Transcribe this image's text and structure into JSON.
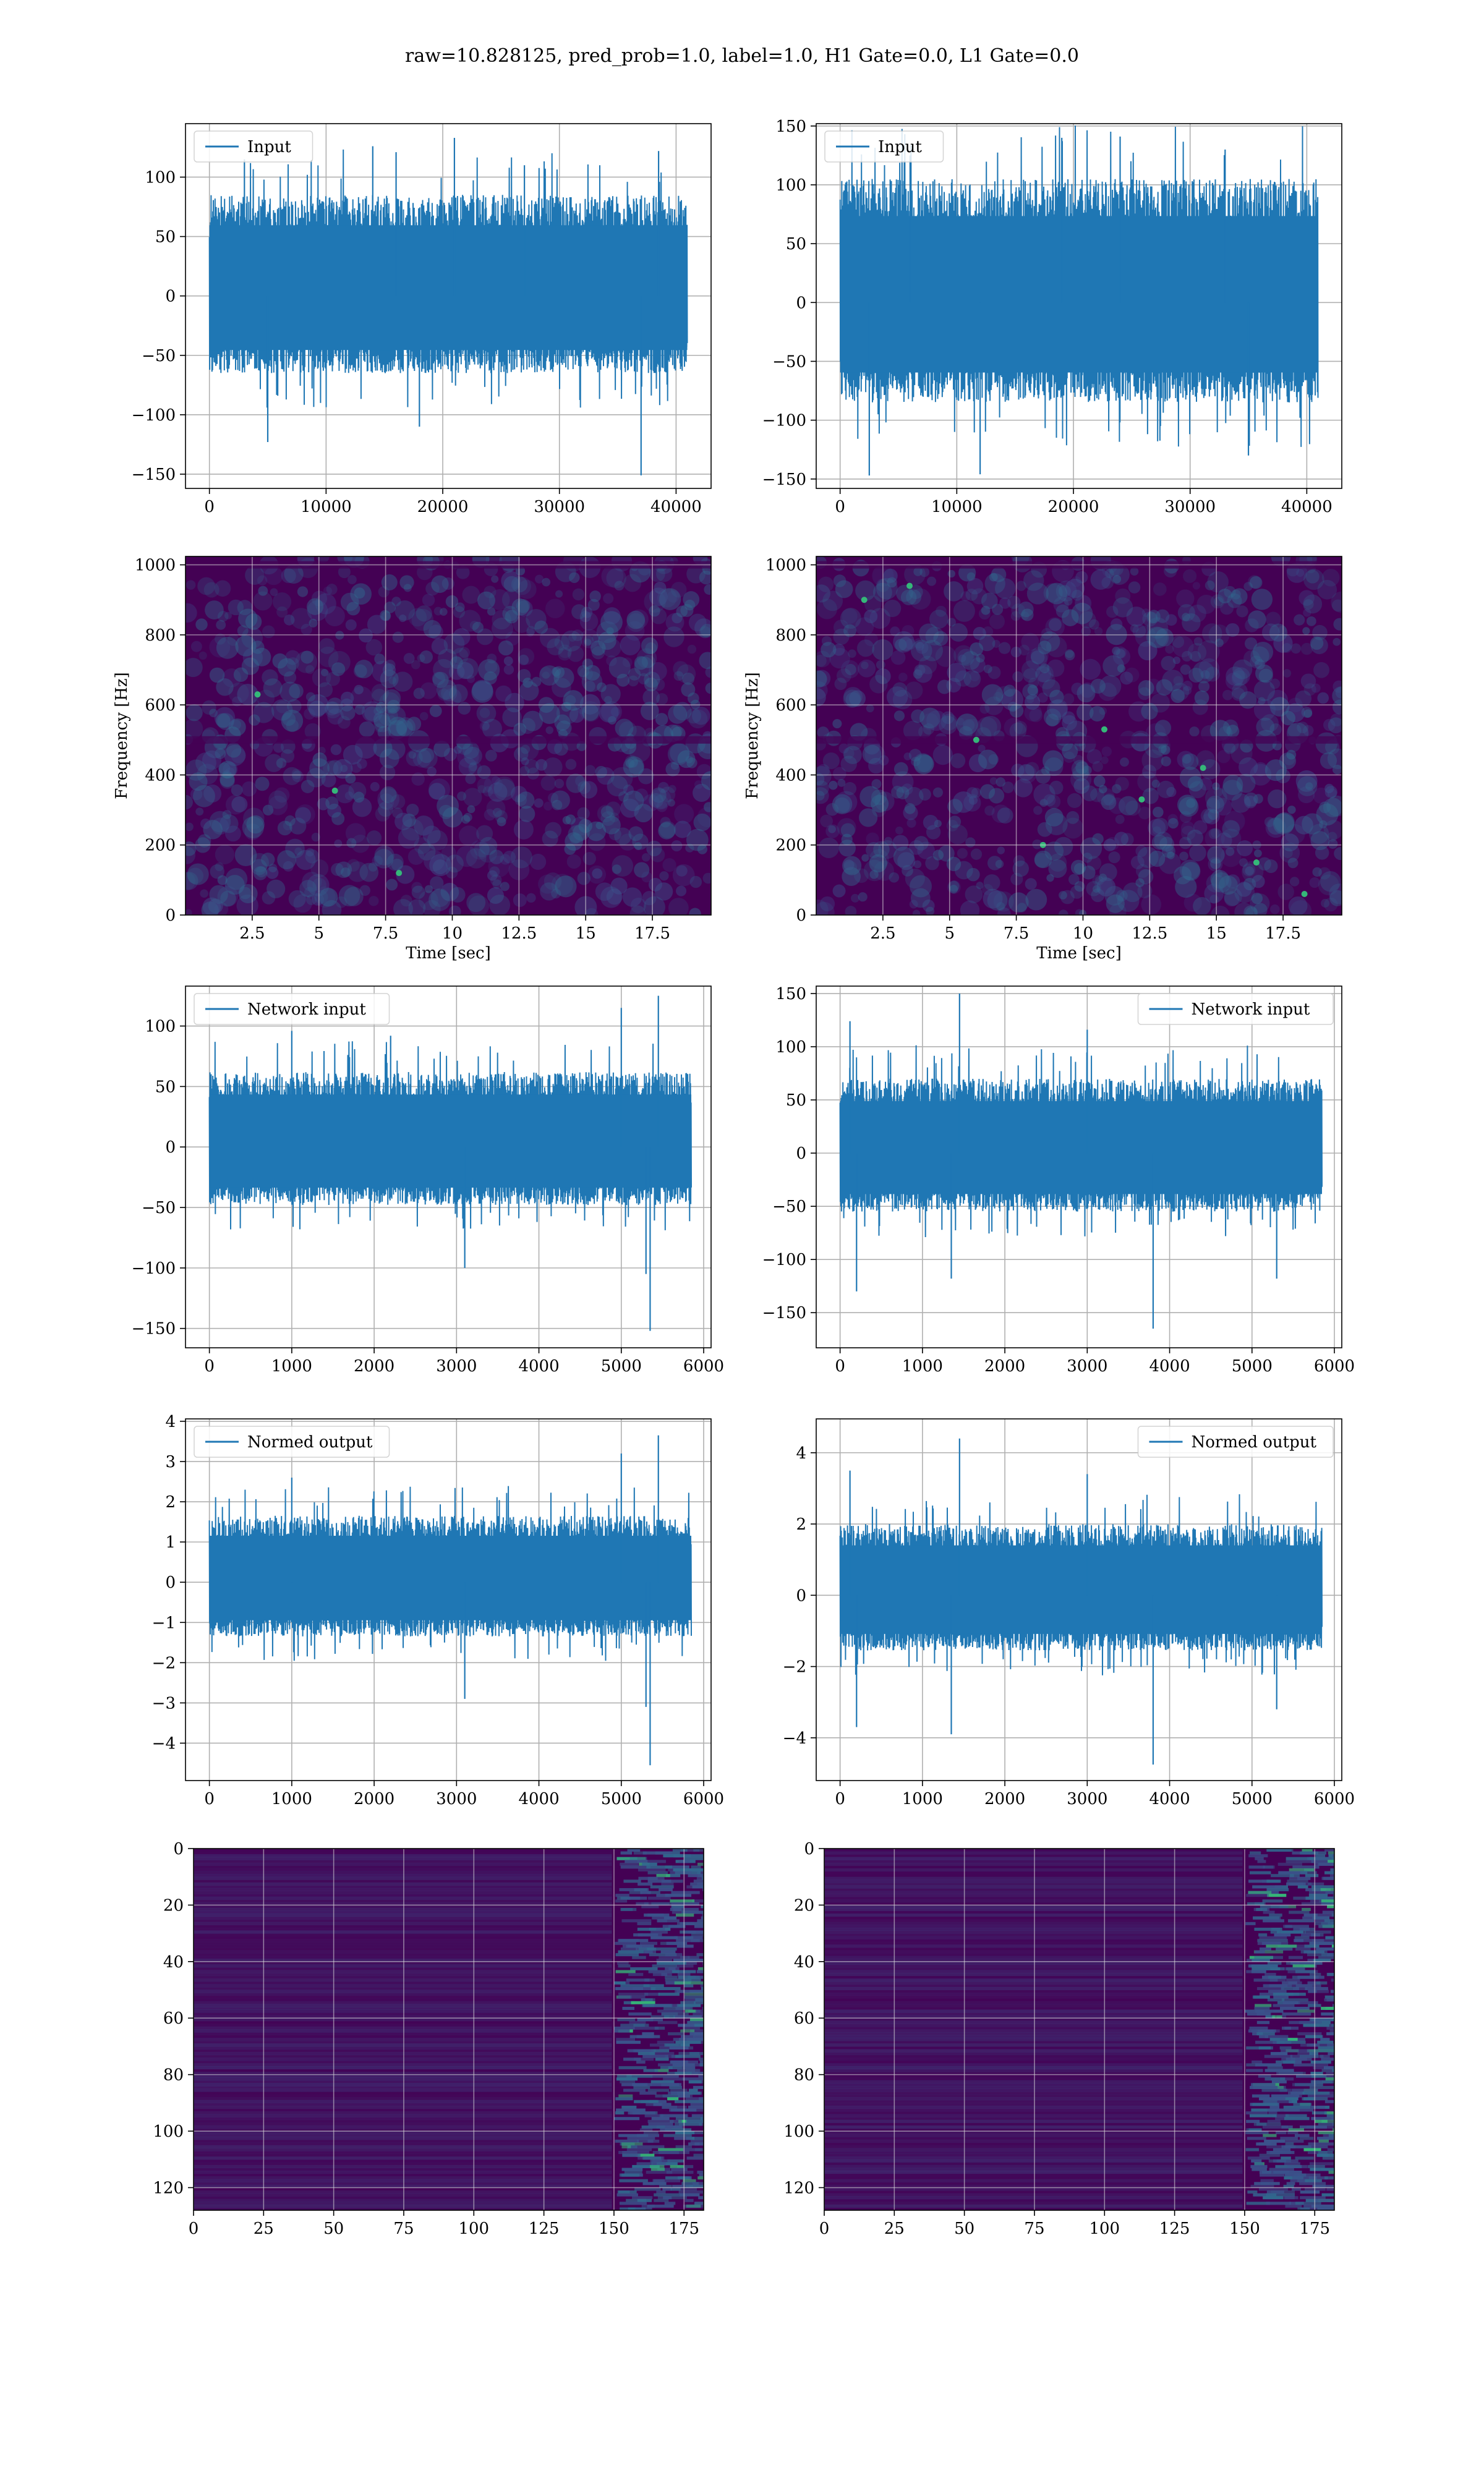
{
  "figure": {
    "title": "raw=10.828125, pred_prob=1.0, label=1.0, H1 Gate=0.0, L1 Gate=0.0",
    "background": "#ffffff"
  },
  "colors": {
    "series": "#1f77b4",
    "grid": "#b0b0b0",
    "heat_low": "#440154",
    "heat_mid": "#31688e",
    "heat_high": "#35b779",
    "heat_peak": "#fde725"
  },
  "chart_data": [
    {
      "id": "input-h1",
      "type": "line",
      "title": "",
      "xlabel": "",
      "ylabel": "",
      "legend": "Input",
      "legend_loc": "upper left",
      "xlim": [
        -2050,
        43000
      ],
      "ylim": [
        -162,
        145
      ],
      "xticks": [
        0,
        10000,
        20000,
        30000,
        40000
      ],
      "yticks": [
        -150,
        -100,
        -50,
        0,
        50,
        100
      ],
      "series": [
        {
          "name": "Input",
          "x_range": [
            0,
            40960
          ],
          "envelope": {
            "typical_max": 85,
            "typical_min": -65,
            "max": 133,
            "min": -151
          },
          "spikes": [
            [
              3000,
              115
            ],
            [
              14000,
              126
            ],
            [
              16000,
              121
            ],
            [
              21000,
              133
            ],
            [
              27000,
              110
            ],
            [
              37000,
              -151
            ],
            [
              38500,
              122
            ],
            [
              5000,
              -123
            ],
            [
              18000,
              -110
            ]
          ]
        }
      ]
    },
    {
      "id": "input-l1",
      "type": "line",
      "title": "",
      "xlabel": "",
      "ylabel": "",
      "legend": "Input",
      "legend_loc": "upper left",
      "xlim": [
        -2050,
        43000
      ],
      "ylim": [
        -158,
        152
      ],
      "xticks": [
        0,
        10000,
        20000,
        30000,
        40000
      ],
      "yticks": [
        -150,
        -100,
        -50,
        0,
        50,
        100,
        150
      ],
      "series": [
        {
          "name": "Input",
          "x_range": [
            0,
            40960
          ],
          "envelope": {
            "typical_max": 105,
            "typical_min": -85,
            "max": 141,
            "min": -147
          },
          "spikes": [
            [
              6000,
              125
            ],
            [
              19000,
              140
            ],
            [
              24000,
              141
            ],
            [
              33000,
              130
            ],
            [
              2500,
              -147
            ],
            [
              12000,
              -146
            ],
            [
              35000,
              -130
            ]
          ]
        }
      ]
    },
    {
      "id": "spectrogram-h1",
      "type": "heatmap",
      "title": "",
      "xlabel": "Time [sec]",
      "ylabel": "Frequency [Hz]",
      "xlim": [
        0,
        19.7
      ],
      "ylim": [
        0,
        1024
      ],
      "xticks": [
        2.5,
        5.0,
        7.5,
        10.0,
        12.5,
        15.0,
        17.5
      ],
      "yticks": [
        0,
        200,
        400,
        600,
        800,
        1000
      ],
      "note_bands_hz": [
        500,
        1000
      ],
      "hot_spots": [
        [
          2.7,
          630
        ],
        [
          5.6,
          355
        ],
        [
          8.0,
          120
        ]
      ]
    },
    {
      "id": "spectrogram-l1",
      "type": "heatmap",
      "title": "",
      "xlabel": "Time [sec]",
      "ylabel": "Frequency [Hz]",
      "xlim": [
        0,
        19.7
      ],
      "ylim": [
        0,
        1024
      ],
      "xticks": [
        2.5,
        5.0,
        7.5,
        10.0,
        12.5,
        15.0,
        17.5
      ],
      "yticks": [
        0,
        200,
        400,
        600,
        800,
        1000
      ],
      "note_bands_hz": [
        500,
        1000
      ],
      "hot_spots": [
        [
          1.8,
          900
        ],
        [
          3.5,
          940
        ],
        [
          6.0,
          500
        ],
        [
          8.5,
          200
        ],
        [
          10.8,
          530
        ],
        [
          12.2,
          330
        ],
        [
          16.5,
          150
        ],
        [
          18.3,
          60
        ],
        [
          14.5,
          420
        ]
      ]
    },
    {
      "id": "network-input-h1",
      "type": "line",
      "title": "",
      "xlabel": "",
      "ylabel": "",
      "legend": "Network input",
      "legend_loc": "upper left",
      "xlim": [
        -290,
        6090
      ],
      "ylim": [
        -166,
        133
      ],
      "xticks": [
        0,
        1000,
        2000,
        3000,
        4000,
        5000,
        6000
      ],
      "yticks": [
        -150,
        -100,
        -50,
        0,
        50,
        100
      ],
      "series": [
        {
          "name": "Network input",
          "x_range": [
            0,
            5850
          ],
          "envelope": {
            "typical_max": 62,
            "typical_min": -48,
            "max": 125,
            "min": -152
          },
          "spikes": [
            [
              1000,
              96
            ],
            [
              2200,
              92
            ],
            [
              5000,
              115
            ],
            [
              5450,
              125
            ],
            [
              5350,
              -152
            ],
            [
              5300,
              -105
            ],
            [
              3100,
              -100
            ]
          ]
        }
      ]
    },
    {
      "id": "network-input-l1",
      "type": "line",
      "title": "",
      "xlabel": "",
      "ylabel": "",
      "legend": "Network input",
      "legend_loc": "upper right",
      "xlim": [
        -290,
        6090
      ],
      "ylim": [
        -183,
        157
      ],
      "xticks": [
        0,
        1000,
        2000,
        3000,
        4000,
        5000,
        6000
      ],
      "yticks": [
        -150,
        -100,
        -50,
        0,
        50,
        100,
        150
      ],
      "series": [
        {
          "name": "Network input",
          "x_range": [
            0,
            5850
          ],
          "envelope": {
            "typical_max": 70,
            "typical_min": -55,
            "max": 150,
            "min": -165
          },
          "spikes": [
            [
              1450,
              150
            ],
            [
              120,
              124
            ],
            [
              3000,
              116
            ],
            [
              3800,
              -165
            ],
            [
              200,
              -130
            ],
            [
              5300,
              -118
            ],
            [
              1350,
              -118
            ]
          ]
        }
      ]
    },
    {
      "id": "normed-output-h1",
      "type": "line",
      "title": "",
      "xlabel": "",
      "ylabel": "",
      "legend": "Normed output",
      "legend_loc": "upper left",
      "xlim": [
        -290,
        6090
      ],
      "ylim": [
        -4.93,
        4.06
      ],
      "xticks": [
        0,
        1000,
        2000,
        3000,
        4000,
        5000,
        6000
      ],
      "yticks": [
        -4,
        -3,
        -2,
        -1,
        0,
        1,
        2,
        3,
        4
      ],
      "series": [
        {
          "name": "Normed output",
          "x_range": [
            0,
            5850
          ],
          "envelope": {
            "typical_max": 1.65,
            "typical_min": -1.35,
            "max": 3.65,
            "min": -4.55
          },
          "spikes": [
            [
              5450,
              3.65
            ],
            [
              5000,
              3.2
            ],
            [
              1000,
              2.6
            ],
            [
              5350,
              -4.55
            ],
            [
              5300,
              -3.1
            ],
            [
              3100,
              -2.9
            ]
          ]
        }
      ]
    },
    {
      "id": "normed-output-l1",
      "type": "line",
      "title": "",
      "xlabel": "",
      "ylabel": "",
      "legend": "Normed output",
      "legend_loc": "upper right",
      "xlim": [
        -290,
        6090
      ],
      "ylim": [
        -5.2,
        4.95
      ],
      "xticks": [
        0,
        1000,
        2000,
        3000,
        4000,
        5000,
        6000
      ],
      "yticks": [
        -4,
        -2,
        0,
        2,
        4
      ],
      "series": [
        {
          "name": "Normed output",
          "x_range": [
            0,
            5850
          ],
          "envelope": {
            "typical_max": 2.0,
            "typical_min": -1.55,
            "max": 4.4,
            "min": -4.75
          },
          "spikes": [
            [
              1450,
              4.4
            ],
            [
              120,
              3.5
            ],
            [
              3000,
              3.4
            ],
            [
              3800,
              -4.75
            ],
            [
              200,
              -3.7
            ],
            [
              1350,
              -3.9
            ],
            [
              5300,
              -3.2
            ]
          ]
        }
      ]
    },
    {
      "id": "feature-map-h1",
      "type": "heatmap",
      "title": "",
      "xlabel": "",
      "ylabel": "",
      "xlim": [
        0,
        182
      ],
      "ylim": [
        128,
        0
      ],
      "xticks": [
        0,
        25,
        50,
        75,
        100,
        125,
        150,
        175
      ],
      "yticks": [
        0,
        20,
        40,
        60,
        80,
        100,
        120
      ],
      "active_band_x": [
        150,
        182
      ]
    },
    {
      "id": "feature-map-l1",
      "type": "heatmap",
      "title": "",
      "xlabel": "",
      "ylabel": "",
      "xlim": [
        0,
        182
      ],
      "ylim": [
        128,
        0
      ],
      "xticks": [
        0,
        25,
        50,
        75,
        100,
        125,
        150,
        175
      ],
      "yticks": [
        0,
        20,
        40,
        60,
        80,
        100,
        120
      ],
      "active_band_x": [
        150,
        182
      ]
    }
  ]
}
